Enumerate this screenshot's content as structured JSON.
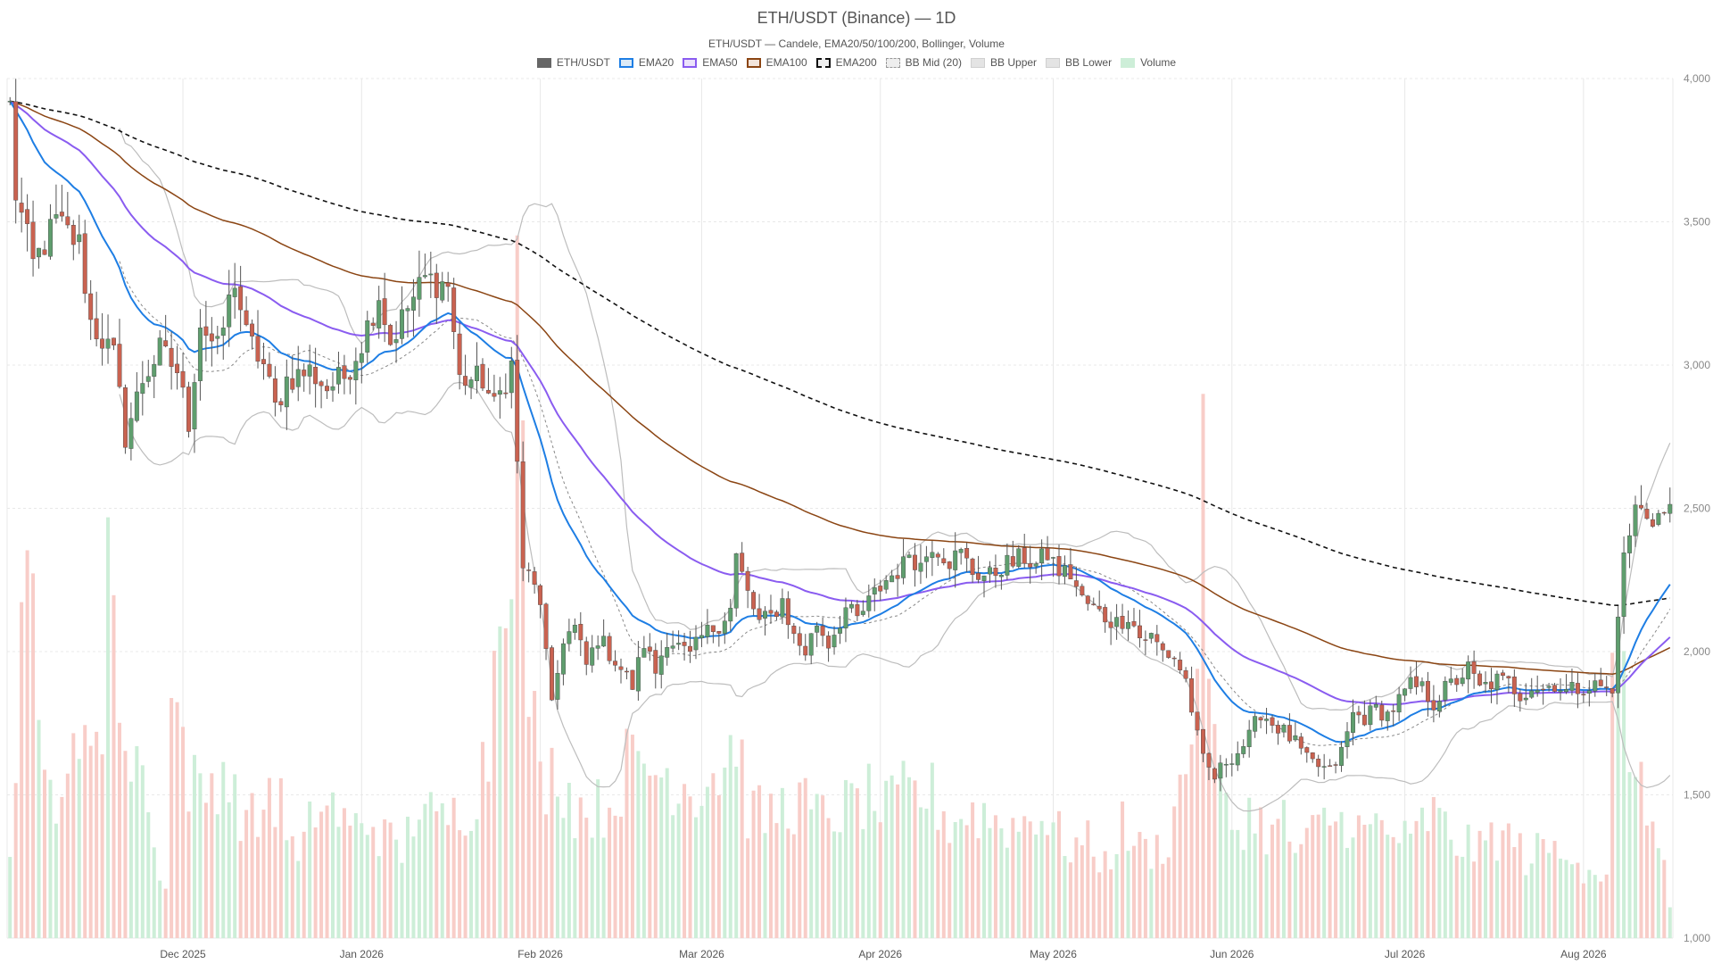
{
  "chart_data": {
    "type": "candlestick",
    "title": "ETH/USDT (Binance) — 1D",
    "subtitle": "ETH/USDT — Candele, EMA20/50/100/200, Bollinger, Volume",
    "ylim": [
      1000,
      4000
    ],
    "y_ticks": [
      "1,000",
      "1,500",
      "2,000",
      "2,500",
      "3,000",
      "3,500",
      "4,000"
    ],
    "x_ticks": [
      {
        "label": "Dec 2025",
        "day": 30
      },
      {
        "label": "Jan 2026",
        "day": 61
      },
      {
        "label": "Feb 2026",
        "day": 92
      },
      {
        "label": "Mar 2026",
        "day": 120
      },
      {
        "label": "Apr 2026",
        "day": 151
      },
      {
        "label": "May 2026",
        "day": 181
      },
      {
        "label": "Jun 2026",
        "day": 212
      },
      {
        "label": "Jul 2026",
        "day": 242
      },
      {
        "label": "Aug 2026",
        "day": 273
      }
    ],
    "close_anchors": [
      [
        0,
        3900
      ],
      [
        1,
        3600
      ],
      [
        4,
        3350
      ],
      [
        8,
        3500
      ],
      [
        12,
        3420
      ],
      [
        14,
        3150
      ],
      [
        18,
        3030
      ],
      [
        20,
        2750
      ],
      [
        23,
        2950
      ],
      [
        26,
        3050
      ],
      [
        29,
        2980
      ],
      [
        31,
        2800
      ],
      [
        33,
        3150
      ],
      [
        36,
        3050
      ],
      [
        39,
        3300
      ],
      [
        41,
        3100
      ],
      [
        44,
        3000
      ],
      [
        46,
        2850
      ],
      [
        48,
        2950
      ],
      [
        52,
        2980
      ],
      [
        55,
        2920
      ],
      [
        58,
        2960
      ],
      [
        61,
        3080
      ],
      [
        64,
        3250
      ],
      [
        66,
        3080
      ],
      [
        69,
        3200
      ],
      [
        72,
        3300
      ],
      [
        76,
        3280
      ],
      [
        78,
        2950
      ],
      [
        82,
        2950
      ],
      [
        84,
        2850
      ],
      [
        87,
        3000
      ],
      [
        89,
        2300
      ],
      [
        92,
        2180
      ],
      [
        94,
        1800
      ],
      [
        96,
        2050
      ],
      [
        98,
        2080
      ],
      [
        100,
        1950
      ],
      [
        102,
        2050
      ],
      [
        105,
        1970
      ],
      [
        108,
        1880
      ],
      [
        110,
        2030
      ],
      [
        112,
        1930
      ],
      [
        114,
        2050
      ],
      [
        118,
        1980
      ],
      [
        120,
        2050
      ],
      [
        123,
        2100
      ],
      [
        125,
        2150
      ],
      [
        126,
        2330
      ],
      [
        128,
        2200
      ],
      [
        130,
        2100
      ],
      [
        132,
        2120
      ],
      [
        134,
        2180
      ],
      [
        136,
        2050
      ],
      [
        138,
        2000
      ],
      [
        140,
        2100
      ],
      [
        142,
        2030
      ],
      [
        145,
        2150
      ],
      [
        147,
        2110
      ],
      [
        150,
        2200
      ],
      [
        152,
        2250
      ],
      [
        155,
        2300
      ],
      [
        156,
        2350
      ],
      [
        158,
        2300
      ],
      [
        160,
        2380
      ],
      [
        163,
        2320
      ],
      [
        165,
        2340
      ],
      [
        167,
        2280
      ],
      [
        170,
        2260
      ],
      [
        172,
        2300
      ],
      [
        174,
        2310
      ],
      [
        176,
        2330
      ],
      [
        178,
        2300
      ],
      [
        180,
        2340
      ],
      [
        182,
        2280
      ],
      [
        184,
        2270
      ],
      [
        186,
        2180
      ],
      [
        188,
        2150
      ],
      [
        190,
        2120
      ],
      [
        192,
        2100
      ],
      [
        194,
        2130
      ],
      [
        196,
        2050
      ],
      [
        198,
        2050
      ],
      [
        200,
        2000
      ],
      [
        202,
        1980
      ],
      [
        204,
        1900
      ],
      [
        206,
        1700
      ],
      [
        207,
        1620
      ],
      [
        209,
        1560
      ],
      [
        211,
        1620
      ],
      [
        213,
        1650
      ],
      [
        215,
        1700
      ],
      [
        217,
        1790
      ],
      [
        219,
        1750
      ],
      [
        221,
        1720
      ],
      [
        223,
        1680
      ],
      [
        225,
        1620
      ],
      [
        227,
        1600
      ],
      [
        229,
        1580
      ],
      [
        231,
        1650
      ],
      [
        233,
        1780
      ],
      [
        235,
        1770
      ],
      [
        237,
        1800
      ],
      [
        239,
        1780
      ],
      [
        241,
        1830
      ],
      [
        243,
        1880
      ],
      [
        245,
        1870
      ],
      [
        247,
        1820
      ],
      [
        249,
        1870
      ],
      [
        251,
        1900
      ],
      [
        253,
        1940
      ],
      [
        255,
        1870
      ],
      [
        258,
        1900
      ],
      [
        260,
        1890
      ],
      [
        262,
        1850
      ],
      [
        264,
        1880
      ],
      [
        266,
        1870
      ],
      [
        268,
        1890
      ],
      [
        270,
        1860
      ],
      [
        273,
        1880
      ],
      [
        276,
        1880
      ],
      [
        278,
        1850
      ],
      [
        279,
        2150
      ],
      [
        280,
        2320
      ],
      [
        282,
        2500
      ],
      [
        285,
        2470
      ],
      [
        287,
        2480
      ],
      [
        288,
        2490
      ]
    ],
    "volume_anchors": [
      [
        0,
        1250
      ],
      [
        2,
        2080
      ],
      [
        3,
        2780
      ],
      [
        5,
        1630
      ],
      [
        6,
        1510
      ],
      [
        8,
        1530
      ],
      [
        10,
        1600
      ],
      [
        12,
        1570
      ],
      [
        14,
        1750
      ],
      [
        16,
        1830
      ],
      [
        17,
        2440
      ],
      [
        20,
        1540
      ],
      [
        22,
        1760
      ],
      [
        25,
        1290
      ],
      [
        27,
        1210
      ],
      [
        28,
        1810
      ],
      [
        29,
        1810
      ],
      [
        31,
        1560
      ],
      [
        33,
        1500
      ],
      [
        35,
        1540
      ],
      [
        37,
        1610
      ],
      [
        39,
        1480
      ],
      [
        41,
        1420
      ],
      [
        43,
        1400
      ],
      [
        45,
        1530
      ],
      [
        47,
        1460
      ],
      [
        50,
        1250
      ],
      [
        53,
        1460
      ],
      [
        56,
        1460
      ],
      [
        59,
        1370
      ],
      [
        62,
        1420
      ],
      [
        65,
        1350
      ],
      [
        68,
        1300
      ],
      [
        71,
        1490
      ],
      [
        74,
        1390
      ],
      [
        77,
        1430
      ],
      [
        80,
        1480
      ],
      [
        83,
        1660
      ],
      [
        85,
        2300
      ],
      [
        87,
        2540
      ],
      [
        88,
        3200
      ],
      [
        90,
        1900
      ],
      [
        92,
        1540
      ],
      [
        95,
        1600
      ],
      [
        98,
        1460
      ],
      [
        101,
        1450
      ],
      [
        104,
        1460
      ],
      [
        107,
        1600
      ],
      [
        110,
        1600
      ],
      [
        113,
        1580
      ],
      [
        116,
        1560
      ],
      [
        119,
        1520
      ],
      [
        122,
        1580
      ],
      [
        124,
        1600
      ],
      [
        126,
        1730
      ],
      [
        128,
        1450
      ],
      [
        131,
        1420
      ],
      [
        134,
        1460
      ],
      [
        137,
        1480
      ],
      [
        140,
        1420
      ],
      [
        143,
        1440
      ],
      [
        146,
        1460
      ],
      [
        149,
        1490
      ],
      [
        152,
        1440
      ],
      [
        155,
        1500
      ],
      [
        158,
        1500
      ],
      [
        160,
        1500
      ],
      [
        163,
        1400
      ],
      [
        166,
        1440
      ],
      [
        169,
        1430
      ],
      [
        172,
        1400
      ],
      [
        175,
        1390
      ],
      [
        178,
        1450
      ],
      [
        181,
        1380
      ],
      [
        184,
        1320
      ],
      [
        187,
        1330
      ],
      [
        190,
        1260
      ],
      [
        193,
        1390
      ],
      [
        196,
        1310
      ],
      [
        199,
        1310
      ],
      [
        201,
        1350
      ],
      [
        203,
        1520
      ],
      [
        205,
        1700
      ],
      [
        207,
        2520
      ],
      [
        209,
        1650
      ],
      [
        211,
        1430
      ],
      [
        213,
        1380
      ],
      [
        215,
        1440
      ],
      [
        217,
        1400
      ],
      [
        219,
        1360
      ],
      [
        221,
        1410
      ],
      [
        223,
        1300
      ],
      [
        225,
        1330
      ],
      [
        227,
        1390
      ],
      [
        229,
        1420
      ],
      [
        231,
        1400
      ],
      [
        233,
        1430
      ],
      [
        235,
        1350
      ],
      [
        237,
        1400
      ],
      [
        239,
        1360
      ],
      [
        241,
        1360
      ],
      [
        243,
        1320
      ],
      [
        245,
        1400
      ],
      [
        247,
        1430
      ],
      [
        249,
        1380
      ],
      [
        251,
        1330
      ],
      [
        253,
        1330
      ],
      [
        255,
        1300
      ],
      [
        257,
        1360
      ],
      [
        259,
        1350
      ],
      [
        261,
        1340
      ],
      [
        263,
        1280
      ],
      [
        265,
        1300
      ],
      [
        267,
        1320
      ],
      [
        269,
        1280
      ],
      [
        271,
        1340
      ],
      [
        273,
        1240
      ],
      [
        275,
        1250
      ],
      [
        277,
        1200
      ],
      [
        278,
        1860
      ],
      [
        279,
        1950
      ],
      [
        280,
        1880
      ],
      [
        282,
        1560
      ],
      [
        284,
        1430
      ],
      [
        286,
        1400
      ],
      [
        288,
        1100
      ]
    ],
    "colors": {
      "up": "#5f9e6e",
      "down": "#c96250",
      "vol_up": "#cdeed8",
      "vol_down": "#f8cdc8",
      "ema20": "#1e7ee4",
      "ema50": "#8a5cf0",
      "ema100": "#8b4513",
      "ema200": "#111111",
      "bb": "#bdbdbd",
      "bb_mid": "#888888",
      "grid": "#e8e8e8",
      "axis_text": "#888888"
    },
    "legend": [
      {
        "key": "candles",
        "label": "ETH/USDT"
      },
      {
        "key": "ema20",
        "label": "EMA20"
      },
      {
        "key": "ema50",
        "label": "EMA50"
      },
      {
        "key": "ema100",
        "label": "EMA100"
      },
      {
        "key": "ema200",
        "label": "EMA200"
      },
      {
        "key": "bbmid",
        "label": "BB Mid (20)"
      },
      {
        "key": "bbup",
        "label": "BB Upper"
      },
      {
        "key": "bblow",
        "label": "BB Lower"
      },
      {
        "key": "volume",
        "label": "Volume"
      }
    ]
  }
}
